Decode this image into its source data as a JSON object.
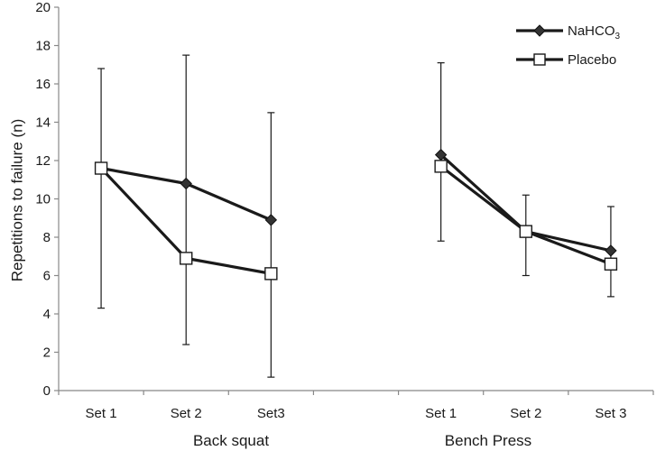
{
  "chart_data": {
    "type": "line",
    "ylabel": "Repetitions to failure (n)",
    "ylim": [
      0,
      20
    ],
    "yticks": [
      0,
      2,
      4,
      6,
      8,
      10,
      12,
      14,
      16,
      18,
      20
    ],
    "categories": [
      "Set 1",
      "Set 2",
      "Set3",
      "",
      "Set 1",
      "Set 2",
      "Set 3"
    ],
    "groups": [
      {
        "label": "Back squat",
        "categories": [
          "Set 1",
          "Set 2",
          "Set3"
        ]
      },
      {
        "label": "Bench Press",
        "categories": [
          "Set 1",
          "Set 2",
          "Set 3"
        ]
      }
    ],
    "legend": {
      "position": "top-right"
    },
    "series": [
      {
        "name": "NaHCO3",
        "legend_text": "NaHCO",
        "legend_subscript": "3",
        "marker": "diamond",
        "color": "#1a1a1a",
        "segments": [
          {
            "positions": [
              0,
              1,
              2
            ],
            "values": [
              11.6,
              10.8,
              8.9
            ],
            "error_up": [
              null,
              null,
              null
            ],
            "error_down": [
              null,
              null,
              null
            ]
          },
          {
            "positions": [
              4,
              5,
              6
            ],
            "values": [
              12.3,
              8.3,
              7.3
            ],
            "error_up": [
              null,
              null,
              null
            ],
            "error_down": [
              null,
              null,
              null
            ]
          }
        ]
      },
      {
        "name": "Placebo",
        "legend_text": "Placebo",
        "marker": "square-open",
        "color": "#1a1a1a",
        "segments": [
          {
            "positions": [
              0,
              1,
              2
            ],
            "values": [
              11.6,
              6.9,
              6.1
            ],
            "error_up": [
              16.8,
              17.5,
              14.5
            ],
            "error_down": [
              4.3,
              2.4,
              0.7
            ]
          },
          {
            "positions": [
              4,
              5,
              6
            ],
            "values": [
              11.7,
              8.3,
              6.6
            ],
            "error_up": [
              17.1,
              10.2,
              9.6
            ],
            "error_down": [
              7.8,
              6.0,
              4.9
            ]
          }
        ]
      }
    ]
  }
}
